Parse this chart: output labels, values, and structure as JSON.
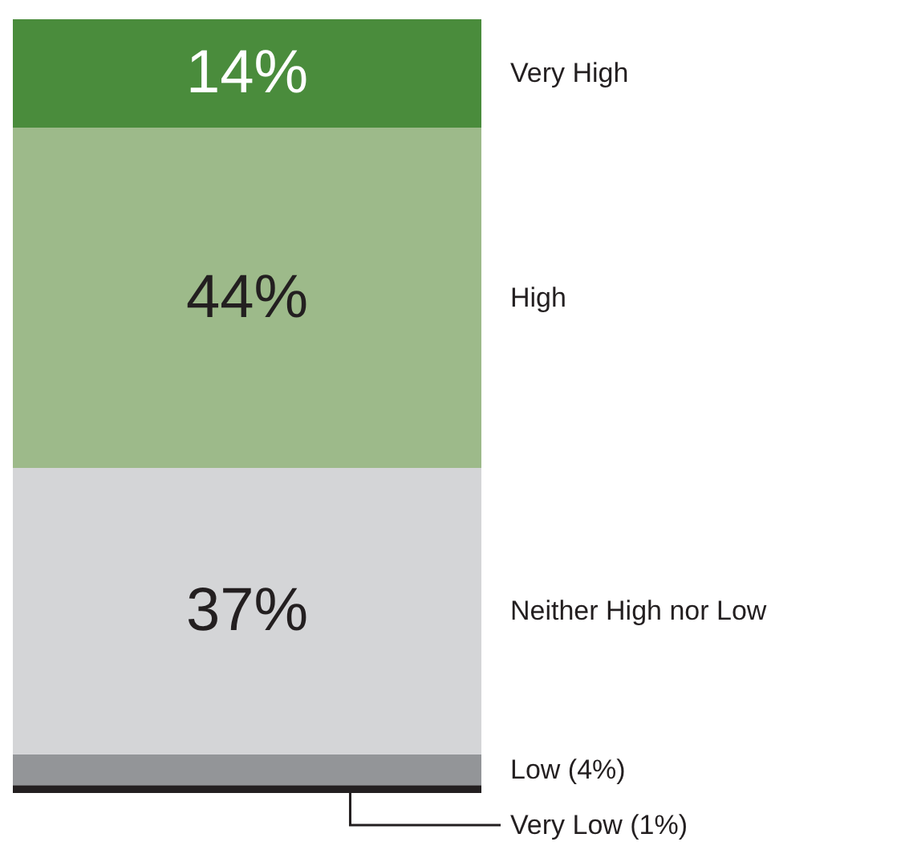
{
  "chart_data": {
    "type": "bar",
    "stacked": true,
    "categories": [
      null
    ],
    "series": [
      {
        "name": "Very Low (1%)",
        "color": "#231f20",
        "values": [
          1
        ],
        "value_labels": [
          null
        ]
      },
      {
        "name": "Low (4%)",
        "color": "#939598",
        "values": [
          4
        ],
        "value_labels": [
          null
        ]
      },
      {
        "name": "Neither High nor Low",
        "color": "#d4d5d7",
        "values": [
          37
        ],
        "value_labels": [
          "37%"
        ]
      },
      {
        "name": "High",
        "color": "#9dba8a",
        "values": [
          44
        ],
        "value_labels": [
          "44%"
        ]
      },
      {
        "name": "Very High",
        "color": "#4a8c3c",
        "values": [
          14
        ],
        "value_labels": [
          "14%"
        ]
      }
    ]
  }
}
